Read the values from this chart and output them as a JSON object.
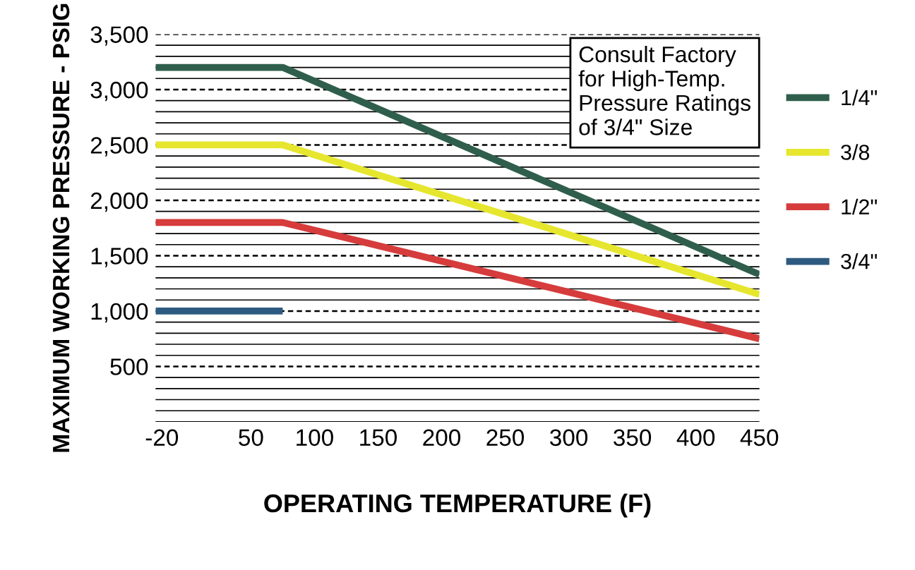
{
  "chart_data": {
    "type": "line",
    "xlabel": "OPERATING TEMPERATURE (F)",
    "ylabel": "MAXIMUM WORKING PRESSURE - PSIG",
    "xlim": [
      -25,
      450
    ],
    "ylim": [
      0,
      3500
    ],
    "xticks": [
      -20,
      50,
      100,
      150,
      200,
      250,
      300,
      350,
      400,
      450
    ],
    "yticks": [
      {
        "value": 0,
        "label": null
      },
      {
        "value": 100,
        "label": null
      },
      {
        "value": 200,
        "label": null
      },
      {
        "value": 300,
        "label": null
      },
      {
        "value": 400,
        "label": null
      },
      {
        "value": 500,
        "label": "500"
      },
      {
        "value": 600,
        "label": null
      },
      {
        "value": 700,
        "label": null
      },
      {
        "value": 800,
        "label": null
      },
      {
        "value": 900,
        "label": null
      },
      {
        "value": 1000,
        "label": "1,000"
      },
      {
        "value": 1100,
        "label": null
      },
      {
        "value": 1200,
        "label": null
      },
      {
        "value": 1300,
        "label": null
      },
      {
        "value": 1400,
        "label": null
      },
      {
        "value": 1500,
        "label": "1,500"
      },
      {
        "value": 1600,
        "label": null
      },
      {
        "value": 1700,
        "label": null
      },
      {
        "value": 1800,
        "label": null
      },
      {
        "value": 1900,
        "label": null
      },
      {
        "value": 2000,
        "label": "2,000"
      },
      {
        "value": 2100,
        "label": null
      },
      {
        "value": 2200,
        "label": null
      },
      {
        "value": 2300,
        "label": null
      },
      {
        "value": 2400,
        "label": null
      },
      {
        "value": 2500,
        "label": "2,500"
      },
      {
        "value": 2600,
        "label": null
      },
      {
        "value": 2700,
        "label": null
      },
      {
        "value": 2800,
        "label": null
      },
      {
        "value": 2900,
        "label": null
      },
      {
        "value": 3000,
        "label": "3,000"
      },
      {
        "value": 3100,
        "label": null
      },
      {
        "value": 3200,
        "label": null
      },
      {
        "value": 3300,
        "label": null
      },
      {
        "value": 3400,
        "label": null
      },
      {
        "value": 3500,
        "label": "3,500"
      }
    ],
    "grid": "y",
    "legend": "right",
    "marker": "none",
    "line_style": "solid",
    "annotations": [
      "Consult Factory\nfor High-Temp.\nPressure Ratings\nof 3/4\" Size"
    ],
    "series": [
      {
        "name": "1/4\"",
        "color": "#2f5f4c",
        "x": [
          -25,
          75,
          450
        ],
        "values": [
          3200,
          3200,
          1330
        ]
      },
      {
        "name": "3/8",
        "color": "#e6e62e",
        "x": [
          -25,
          75,
          450
        ],
        "values": [
          2500,
          2500,
          1150
        ]
      },
      {
        "name": "1/2\"",
        "color": "#d63c3c",
        "x": [
          -25,
          75,
          450
        ],
        "values": [
          1800,
          1800,
          750
        ]
      },
      {
        "name": "3/4\"",
        "color": "#2d5a80",
        "x": [
          -25,
          75
        ],
        "values": [
          1000,
          1000
        ]
      }
    ]
  }
}
